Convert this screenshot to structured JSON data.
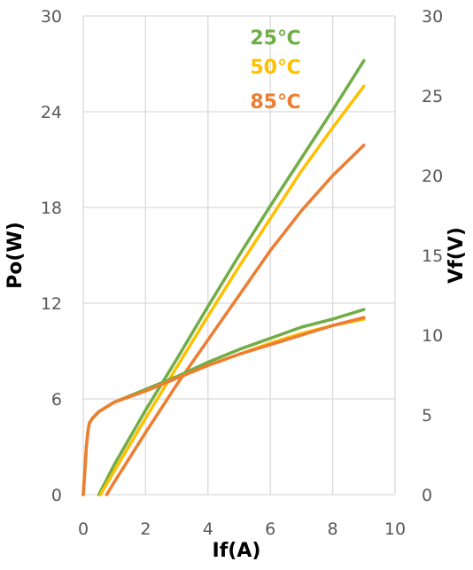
{
  "chart_data": {
    "type": "line",
    "xlabel": "If(A)",
    "ylabel_left": "Po(W)",
    "ylabel_right": "Vf(V)",
    "xlim": [
      0,
      10
    ],
    "ylim_left": [
      0,
      30
    ],
    "ylim_right": [
      0,
      30
    ],
    "x_ticks": [
      0,
      2,
      4,
      6,
      8,
      10
    ],
    "y_left_ticks": [
      0,
      6,
      12,
      18,
      24,
      30
    ],
    "y_right_ticks": [
      0,
      5,
      10,
      15,
      20,
      25,
      30
    ],
    "grid": true,
    "legend_position": "top-center",
    "series": [
      {
        "name": "25℃",
        "color": "#70ad47",
        "metric": "Po",
        "axis": "left",
        "x": [
          0.5,
          1,
          2,
          3,
          4,
          5,
          6,
          7,
          8,
          9
        ],
        "y": [
          0.0,
          1.9,
          5.3,
          8.5,
          11.8,
          15.0,
          18.1,
          21.1,
          24.1,
          27.2
        ]
      },
      {
        "name": "50℃",
        "color": "#ffc000",
        "metric": "Po",
        "axis": "left",
        "x": [
          0.55,
          1,
          2,
          3,
          4,
          5,
          6,
          7,
          8,
          9
        ],
        "y": [
          0.0,
          1.5,
          4.8,
          8.0,
          11.2,
          14.3,
          17.3,
          20.3,
          23.0,
          25.6
        ]
      },
      {
        "name": "85℃",
        "color": "#ed7d31",
        "metric": "Po",
        "axis": "left",
        "x": [
          0.75,
          1,
          2,
          3,
          4,
          5,
          6,
          7,
          8,
          9
        ],
        "y": [
          0.0,
          0.8,
          3.9,
          6.9,
          9.7,
          12.5,
          15.3,
          17.8,
          20.0,
          21.9
        ]
      },
      {
        "name": "25℃",
        "color": "#70ad47",
        "metric": "Vf",
        "axis": "right",
        "x": [
          0,
          0.05,
          0.1,
          0.15,
          0.2,
          0.3,
          0.5,
          1,
          2,
          3,
          4,
          5,
          6,
          7,
          8,
          9
        ],
        "y": [
          0.0,
          1.5,
          3.0,
          4.0,
          4.5,
          4.8,
          5.2,
          5.8,
          6.6,
          7.4,
          8.3,
          9.1,
          9.8,
          10.5,
          11.0,
          11.6
        ]
      },
      {
        "name": "50℃",
        "color": "#ffc000",
        "metric": "Vf",
        "axis": "right",
        "x": [
          0,
          0.05,
          0.1,
          0.15,
          0.2,
          0.3,
          0.5,
          1,
          2,
          3,
          4,
          5,
          6,
          7,
          8,
          9
        ],
        "y": [
          0.0,
          1.5,
          3.0,
          4.0,
          4.5,
          4.8,
          5.2,
          5.8,
          6.5,
          7.3,
          8.1,
          8.8,
          9.5,
          10.1,
          10.6,
          11.0
        ]
      },
      {
        "name": "85℃",
        "color": "#ed7d31",
        "metric": "Vf",
        "axis": "right",
        "x": [
          0,
          0.05,
          0.1,
          0.15,
          0.2,
          0.3,
          0.5,
          1,
          2,
          3,
          4,
          5,
          6,
          7,
          8,
          9
        ],
        "y": [
          0.0,
          1.5,
          3.0,
          4.0,
          4.5,
          4.8,
          5.2,
          5.8,
          6.5,
          7.3,
          8.1,
          8.8,
          9.4,
          10.0,
          10.6,
          11.1
        ]
      }
    ],
    "legend": [
      {
        "label": "25℃",
        "color": "#70ad47"
      },
      {
        "label": "50℃",
        "color": "#ffc000"
      },
      {
        "label": "85℃",
        "color": "#ed7d31"
      }
    ]
  }
}
